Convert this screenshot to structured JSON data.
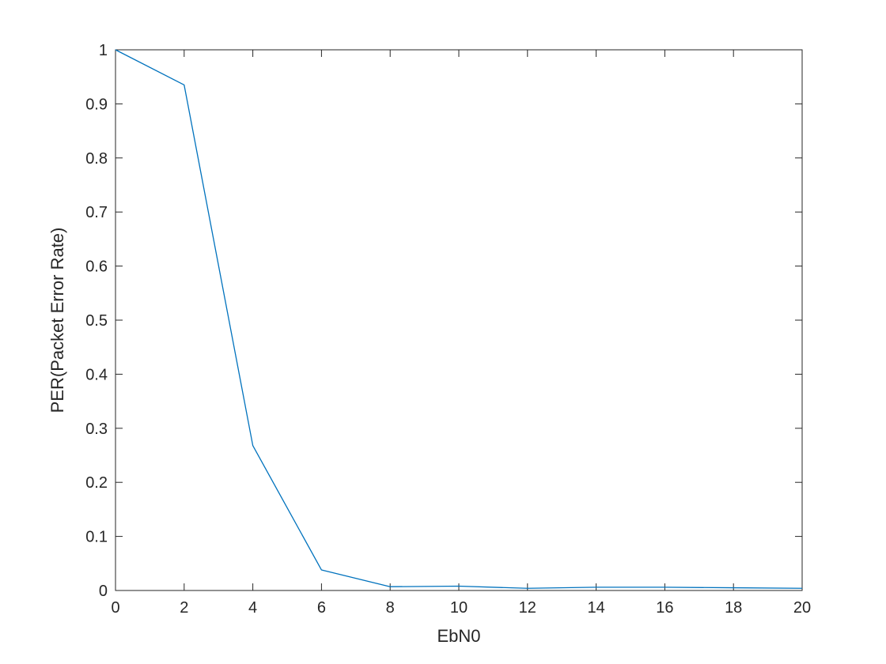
{
  "chart_data": {
    "type": "line",
    "xlabel": "EbN0",
    "ylabel": "PER(Packet Error Rate)",
    "xlim": [
      0,
      20
    ],
    "ylim": [
      0,
      1
    ],
    "xticks": [
      "0",
      "2",
      "4",
      "6",
      "8",
      "10",
      "12",
      "14",
      "16",
      "18",
      "20"
    ],
    "yticks": [
      "0",
      "0.1",
      "0.2",
      "0.3",
      "0.4",
      "0.5",
      "0.6",
      "0.7",
      "0.8",
      "0.9",
      "1"
    ],
    "grid": false,
    "series": [
      {
        "color": "#0072BD",
        "x": [
          0,
          2,
          4,
          6,
          8,
          10,
          12,
          14,
          16,
          18,
          20
        ],
        "y": [
          1.0,
          0.935,
          0.268,
          0.038,
          0.007,
          0.008,
          0.004,
          0.006,
          0.006,
          0.005,
          0.004
        ]
      }
    ]
  }
}
